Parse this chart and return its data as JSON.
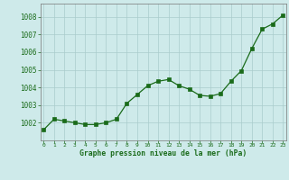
{
  "x": [
    0,
    1,
    2,
    3,
    4,
    5,
    6,
    7,
    8,
    9,
    10,
    11,
    12,
    13,
    14,
    15,
    16,
    17,
    18,
    19,
    20,
    21,
    22,
    23
  ],
  "y": [
    1001.6,
    1002.2,
    1002.1,
    1002.0,
    1001.9,
    1001.9,
    1002.0,
    1002.2,
    1003.1,
    1003.6,
    1004.1,
    1004.35,
    1004.45,
    1004.1,
    1003.9,
    1003.55,
    1003.5,
    1003.65,
    1004.35,
    1004.95,
    1006.2,
    1007.3,
    1007.6,
    1008.1
  ],
  "line_color": "#1a6b1a",
  "marker_color": "#1a6b1a",
  "bg_color": "#ceeaea",
  "grid_color": "#aacccc",
  "xlabel": "Graphe pression niveau de la mer (hPa)",
  "xlabel_color": "#1a6b1a",
  "tick_color": "#1a6b1a",
  "ylim": [
    1001.0,
    1008.75
  ],
  "yticks": [
    1002,
    1003,
    1004,
    1005,
    1006,
    1007,
    1008
  ],
  "xlim": [
    -0.3,
    23.3
  ]
}
